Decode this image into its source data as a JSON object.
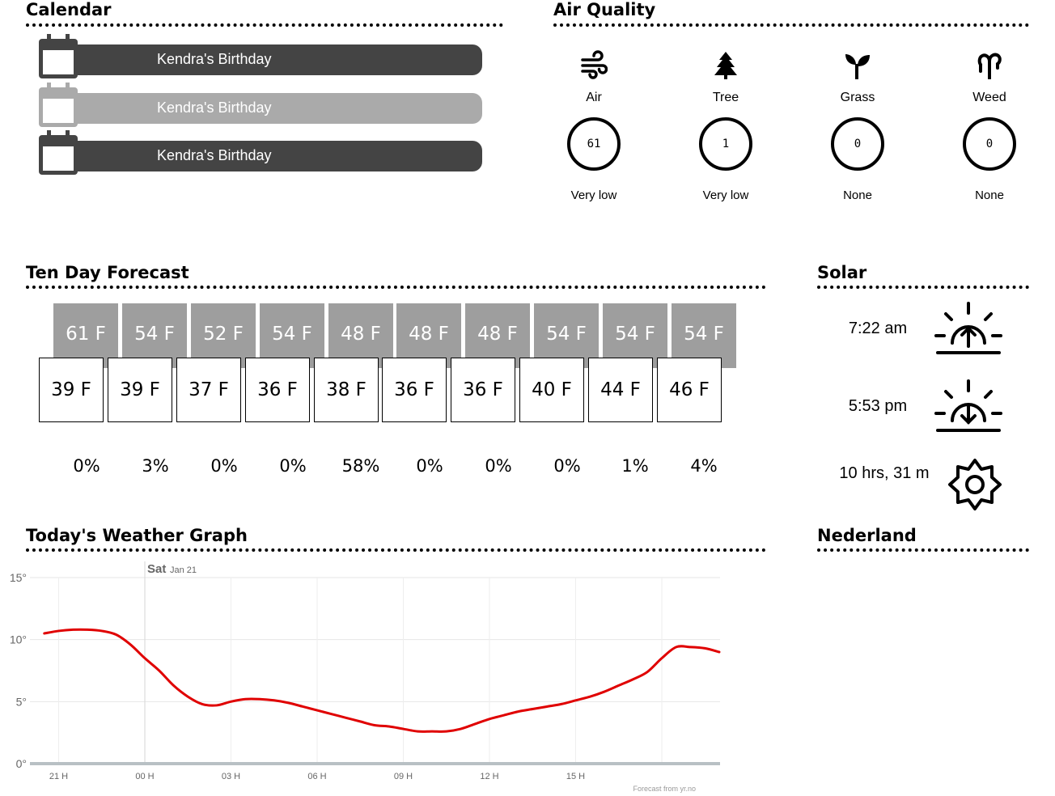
{
  "sections": {
    "calendar": "Calendar",
    "air_quality": "Air Quality",
    "forecast": "Ten Day Forecast",
    "solar": "Solar",
    "graph": "Today's Weather Graph",
    "location": "Nederland"
  },
  "calendar": {
    "events": [
      {
        "title": "Kendra's Birthday",
        "style": "dark"
      },
      {
        "title": "Kendra's Birthday",
        "style": "light"
      },
      {
        "title": "Kendra's Birthday",
        "style": "dark"
      }
    ]
  },
  "air_quality": [
    {
      "name": "Air",
      "icon": "wind-icon",
      "value": "61",
      "status": "Very low"
    },
    {
      "name": "Tree",
      "icon": "tree-icon",
      "value": "1",
      "status": "Very low"
    },
    {
      "name": "Grass",
      "icon": "grass-icon",
      "value": "0",
      "status": "None"
    },
    {
      "name": "Weed",
      "icon": "weed-icon",
      "value": "0",
      "status": "None"
    }
  ],
  "forecast": {
    "highs": [
      "61 F",
      "54 F",
      "52 F",
      "54 F",
      "48 F",
      "48 F",
      "48 F",
      "54 F",
      "54 F",
      "54 F"
    ],
    "lows": [
      "39 F",
      "39 F",
      "37 F",
      "36 F",
      "38 F",
      "36 F",
      "36 F",
      "40 F",
      "44 F",
      "46 F"
    ],
    "precip": [
      "0%",
      "3%",
      "0%",
      "0%",
      "58%",
      "0%",
      "0%",
      "0%",
      "1%",
      "4%"
    ]
  },
  "solar": {
    "sunrise": "7:22 am",
    "sunset": "5:53 pm",
    "day_length": "10 hrs, 31 m",
    "sunrise_icon": "sunrise-icon",
    "sunset_icon": "sunset-icon",
    "daylight_icon": "sun-icon"
  },
  "chart_data": {
    "type": "line",
    "day_label": "Sat",
    "date_label": "Jan 21",
    "x_ticks": [
      "21 H",
      "00 H",
      "03 H",
      "06 H",
      "09 H",
      "12 H",
      "15 H"
    ],
    "y_ticks": [
      "0°",
      "5°",
      "10°",
      "15°"
    ],
    "ylim": [
      0,
      15
    ],
    "xlim": [
      20,
      44.5
    ],
    "grid": true,
    "series_color": "#e00000",
    "series": [
      {
        "x": [
          20.5,
          21,
          21.5,
          22,
          22.5,
          23,
          23.5,
          24,
          24.5,
          25,
          25.5,
          26,
          26.5,
          27,
          27.5,
          28,
          28.5,
          29,
          29.5,
          30,
          30.5,
          31,
          31.5,
          32,
          32.5,
          33,
          33.5,
          34,
          34.5,
          35,
          35.5,
          36,
          36.5,
          37,
          37.5,
          38,
          38.5,
          39,
          39.5,
          40,
          40.5,
          41,
          41.5,
          42,
          42.5,
          43,
          43.5,
          44
        ],
        "values": [
          10.5,
          10.7,
          10.8,
          10.8,
          10.7,
          10.4,
          9.6,
          8.5,
          7.5,
          6.3,
          5.4,
          4.8,
          4.7,
          5.0,
          5.2,
          5.2,
          5.1,
          4.9,
          4.6,
          4.3,
          4.0,
          3.7,
          3.4,
          3.1,
          3.0,
          2.8,
          2.6,
          2.6,
          2.6,
          2.8,
          3.2,
          3.6,
          3.9,
          4.2,
          4.4,
          4.6,
          4.8,
          5.1,
          5.4,
          5.8,
          6.3,
          6.8,
          7.4,
          8.5,
          9.4,
          9.4,
          9.3,
          9.0
        ]
      }
    ],
    "footnote": "Forecast from yr.no"
  }
}
